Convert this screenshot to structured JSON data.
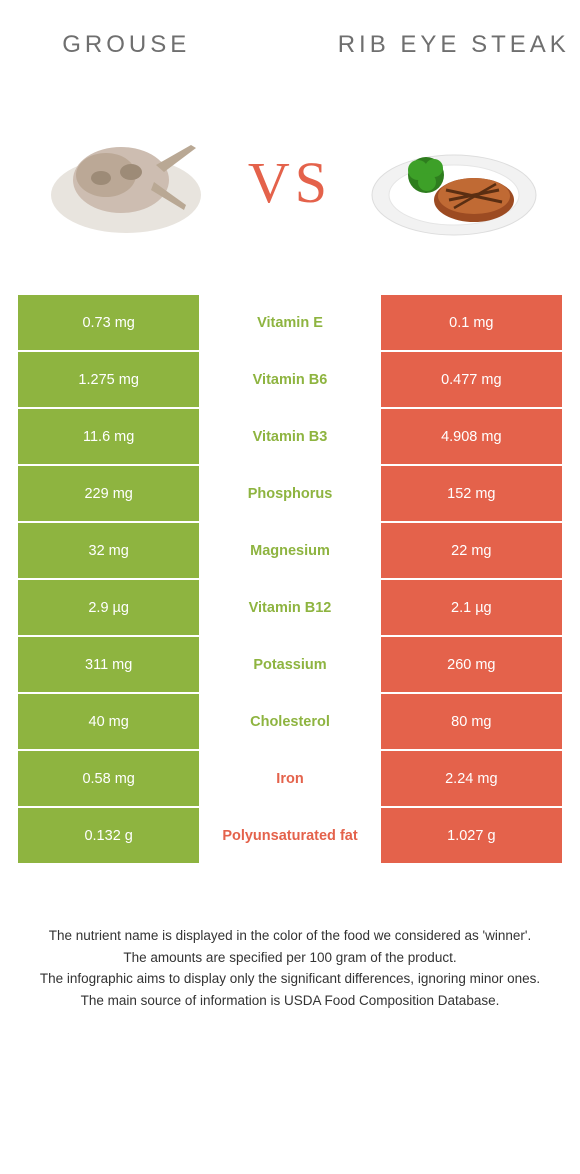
{
  "colors": {
    "left": "#8eb440",
    "right": "#e4624b",
    "title": "#6f6f6f",
    "footer_text": "#333333",
    "white": "#ffffff"
  },
  "header": {
    "left_title": "GROUSE",
    "right_title": "RIB EYE STEAK",
    "vs": "VS"
  },
  "rows": [
    {
      "left": "0.73 mg",
      "label": "Vitamin E",
      "right": "0.1 mg",
      "winner": "left"
    },
    {
      "left": "1.275 mg",
      "label": "Vitamin B6",
      "right": "0.477 mg",
      "winner": "left"
    },
    {
      "left": "11.6 mg",
      "label": "Vitamin B3",
      "right": "4.908 mg",
      "winner": "left"
    },
    {
      "left": "229 mg",
      "label": "Phosphorus",
      "right": "152 mg",
      "winner": "left"
    },
    {
      "left": "32 mg",
      "label": "Magnesium",
      "right": "22 mg",
      "winner": "left"
    },
    {
      "left": "2.9 µg",
      "label": "Vitamin B12",
      "right": "2.1 µg",
      "winner": "left"
    },
    {
      "left": "311 mg",
      "label": "Potassium",
      "right": "260 mg",
      "winner": "left"
    },
    {
      "left": "40 mg",
      "label": "Cholesterol",
      "right": "80 mg",
      "winner": "left"
    },
    {
      "left": "0.58 mg",
      "label": "Iron",
      "right": "2.24 mg",
      "winner": "right"
    },
    {
      "left": "0.132 g",
      "label": "Polyunsaturated fat",
      "right": "1.027 g",
      "winner": "right"
    }
  ],
  "footer": {
    "line1": "The nutrient name is displayed in the color of the food we considered as 'winner'.",
    "line2": "The amounts are specified per 100 gram of the product.",
    "line3": "The infographic aims to display only the significant differences, ignoring minor ones.",
    "line4": "The main source of information is USDA Food Composition Database."
  }
}
